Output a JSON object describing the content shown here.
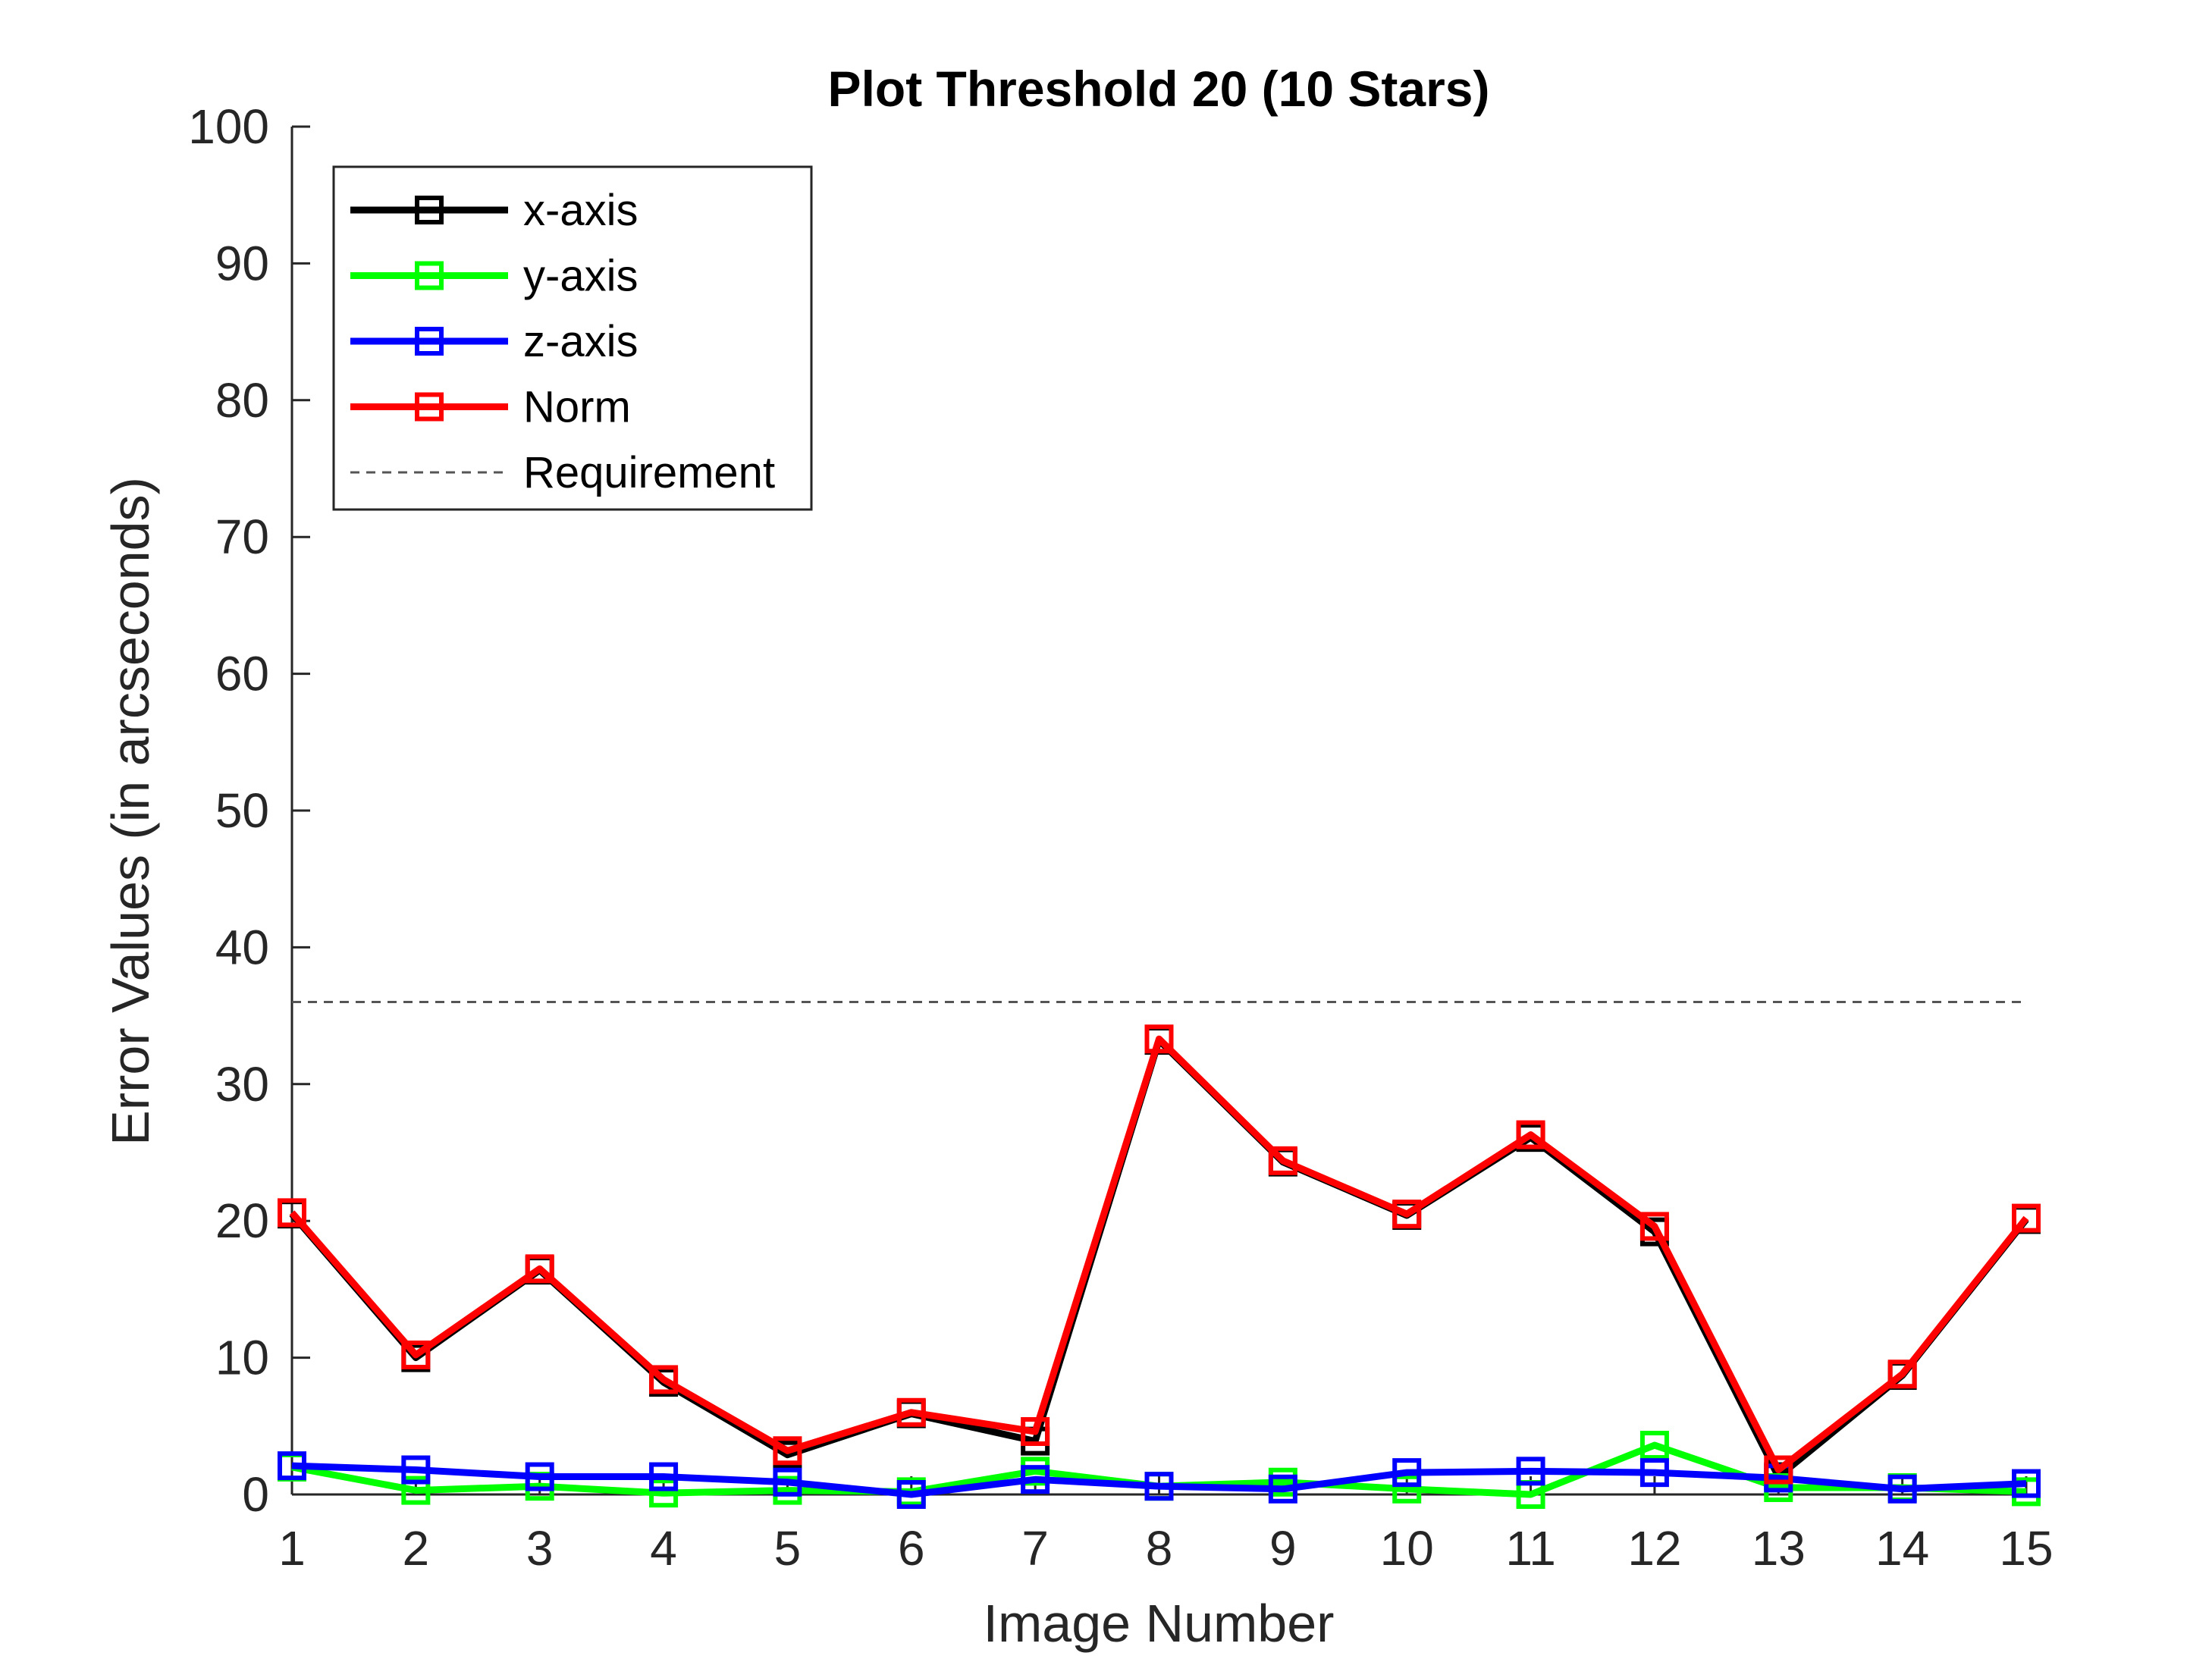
{
  "chart_data": {
    "type": "line",
    "title": "Plot Threshold 20 (10 Stars)",
    "xlabel": "Image Number",
    "ylabel": "Error Values (in arcseconds)",
    "xlim": [
      1,
      15
    ],
    "ylim": [
      0,
      100
    ],
    "xticks": [
      1,
      2,
      3,
      4,
      5,
      6,
      7,
      8,
      9,
      10,
      11,
      12,
      13,
      14,
      15
    ],
    "yticks": [
      0,
      10,
      20,
      30,
      40,
      50,
      60,
      70,
      80,
      90,
      100
    ],
    "grid": false,
    "legend_position": "top-left",
    "marker": "square",
    "x": [
      1,
      2,
      3,
      4,
      5,
      6,
      7,
      8,
      9,
      10,
      11,
      12,
      13,
      14,
      15
    ],
    "series": [
      {
        "name": "x-axis",
        "color": "#000000",
        "values": [
          20.5,
          10.0,
          16.4,
          8.2,
          2.9,
          5.9,
          3.9,
          33.2,
          24.3,
          20.4,
          26.1,
          19.2,
          1.3,
          8.7,
          20.1
        ]
      },
      {
        "name": "y-axis",
        "color": "#00ff00",
        "values": [
          2.0,
          0.3,
          0.6,
          0.1,
          0.3,
          0.2,
          1.7,
          0.6,
          0.9,
          0.4,
          0.0,
          3.6,
          0.5,
          0.5,
          0.2
        ]
      },
      {
        "name": "z-axis",
        "color": "#0000ff",
        "values": [
          2.1,
          1.8,
          1.3,
          1.3,
          0.9,
          0.0,
          1.1,
          0.6,
          0.4,
          1.6,
          1.7,
          1.6,
          1.2,
          0.4,
          0.8
        ]
      },
      {
        "name": "Norm",
        "color": "#ff0000",
        "values": [
          20.6,
          10.2,
          16.5,
          8.4,
          3.2,
          6.0,
          4.6,
          33.3,
          24.4,
          20.5,
          26.3,
          19.6,
          1.8,
          8.8,
          20.2
        ]
      }
    ],
    "reference_line": {
      "name": "Requirement",
      "y": 36,
      "color": "#555555",
      "style": "dashed"
    }
  }
}
